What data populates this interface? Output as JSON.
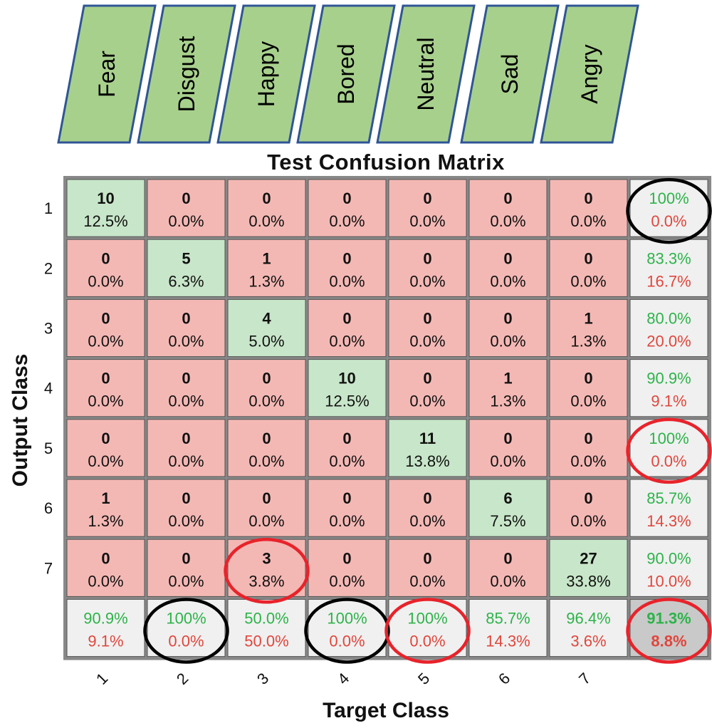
{
  "colors": {
    "diag": "#c8e6c9",
    "offdiag": "#f4b8b4",
    "summary": "#f0f0f0",
    "overall": "#c9c9c9",
    "green_text": "#2db34a",
    "red_text": "#e0463c",
    "banner_fill": "#a8d08d",
    "banner_stroke": "#2f5597",
    "circle_black": "#000000",
    "circle_red": "#e8232b"
  },
  "emotions": [
    "Fear",
    "Disgust",
    "Happy",
    "Bored",
    "Neutral",
    "Sad",
    "Angry"
  ],
  "chart_data": {
    "type": "heatmap",
    "title": "Test Confusion Matrix",
    "xlabel": "Target Class",
    "ylabel": "Output Class",
    "row_labels": [
      "1",
      "2",
      "3",
      "4",
      "5",
      "6",
      "7"
    ],
    "col_labels": [
      "1",
      "2",
      "3",
      "4",
      "5",
      "6",
      "7"
    ],
    "counts": [
      [
        10,
        0,
        0,
        0,
        0,
        0,
        0
      ],
      [
        0,
        5,
        1,
        0,
        0,
        0,
        0
      ],
      [
        0,
        0,
        4,
        0,
        0,
        0,
        1
      ],
      [
        0,
        0,
        0,
        10,
        0,
        1,
        0
      ],
      [
        0,
        0,
        0,
        0,
        11,
        0,
        0
      ],
      [
        1,
        0,
        0,
        0,
        0,
        6,
        0
      ],
      [
        0,
        0,
        3,
        0,
        0,
        0,
        27
      ]
    ],
    "percents": [
      [
        "12.5%",
        "0.0%",
        "0.0%",
        "0.0%",
        "0.0%",
        "0.0%",
        "0.0%"
      ],
      [
        "0.0%",
        "6.3%",
        "1.3%",
        "0.0%",
        "0.0%",
        "0.0%",
        "0.0%"
      ],
      [
        "0.0%",
        "0.0%",
        "5.0%",
        "0.0%",
        "0.0%",
        "0.0%",
        "1.3%"
      ],
      [
        "0.0%",
        "0.0%",
        "0.0%",
        "12.5%",
        "0.0%",
        "1.3%",
        "0.0%"
      ],
      [
        "0.0%",
        "0.0%",
        "0.0%",
        "0.0%",
        "13.8%",
        "0.0%",
        "0.0%"
      ],
      [
        "1.3%",
        "0.0%",
        "0.0%",
        "0.0%",
        "0.0%",
        "7.5%",
        "0.0%"
      ],
      [
        "0.0%",
        "0.0%",
        "3.8%",
        "0.0%",
        "0.0%",
        "0.0%",
        "33.8%"
      ]
    ],
    "row_summary": [
      [
        "100%",
        "0.0%"
      ],
      [
        "83.3%",
        "16.7%"
      ],
      [
        "80.0%",
        "20.0%"
      ],
      [
        "90.9%",
        "9.1%"
      ],
      [
        "100%",
        "0.0%"
      ],
      [
        "85.7%",
        "14.3%"
      ],
      [
        "90.0%",
        "10.0%"
      ]
    ],
    "col_summary": [
      [
        "90.9%",
        "9.1%"
      ],
      [
        "100%",
        "0.0%"
      ],
      [
        "50.0%",
        "50.0%"
      ],
      [
        "100%",
        "0.0%"
      ],
      [
        "100%",
        "0.0%"
      ],
      [
        "85.7%",
        "14.3%"
      ],
      [
        "96.4%",
        "3.6%"
      ]
    ],
    "overall": [
      "91.3%",
      "8.8%"
    ],
    "annotations": {
      "black_circles": [
        "row-summary-1",
        "col-summary-2",
        "col-summary-4"
      ],
      "red_circles": [
        "row-summary-5",
        "cell-7-3",
        "col-summary-5",
        "overall"
      ]
    }
  }
}
